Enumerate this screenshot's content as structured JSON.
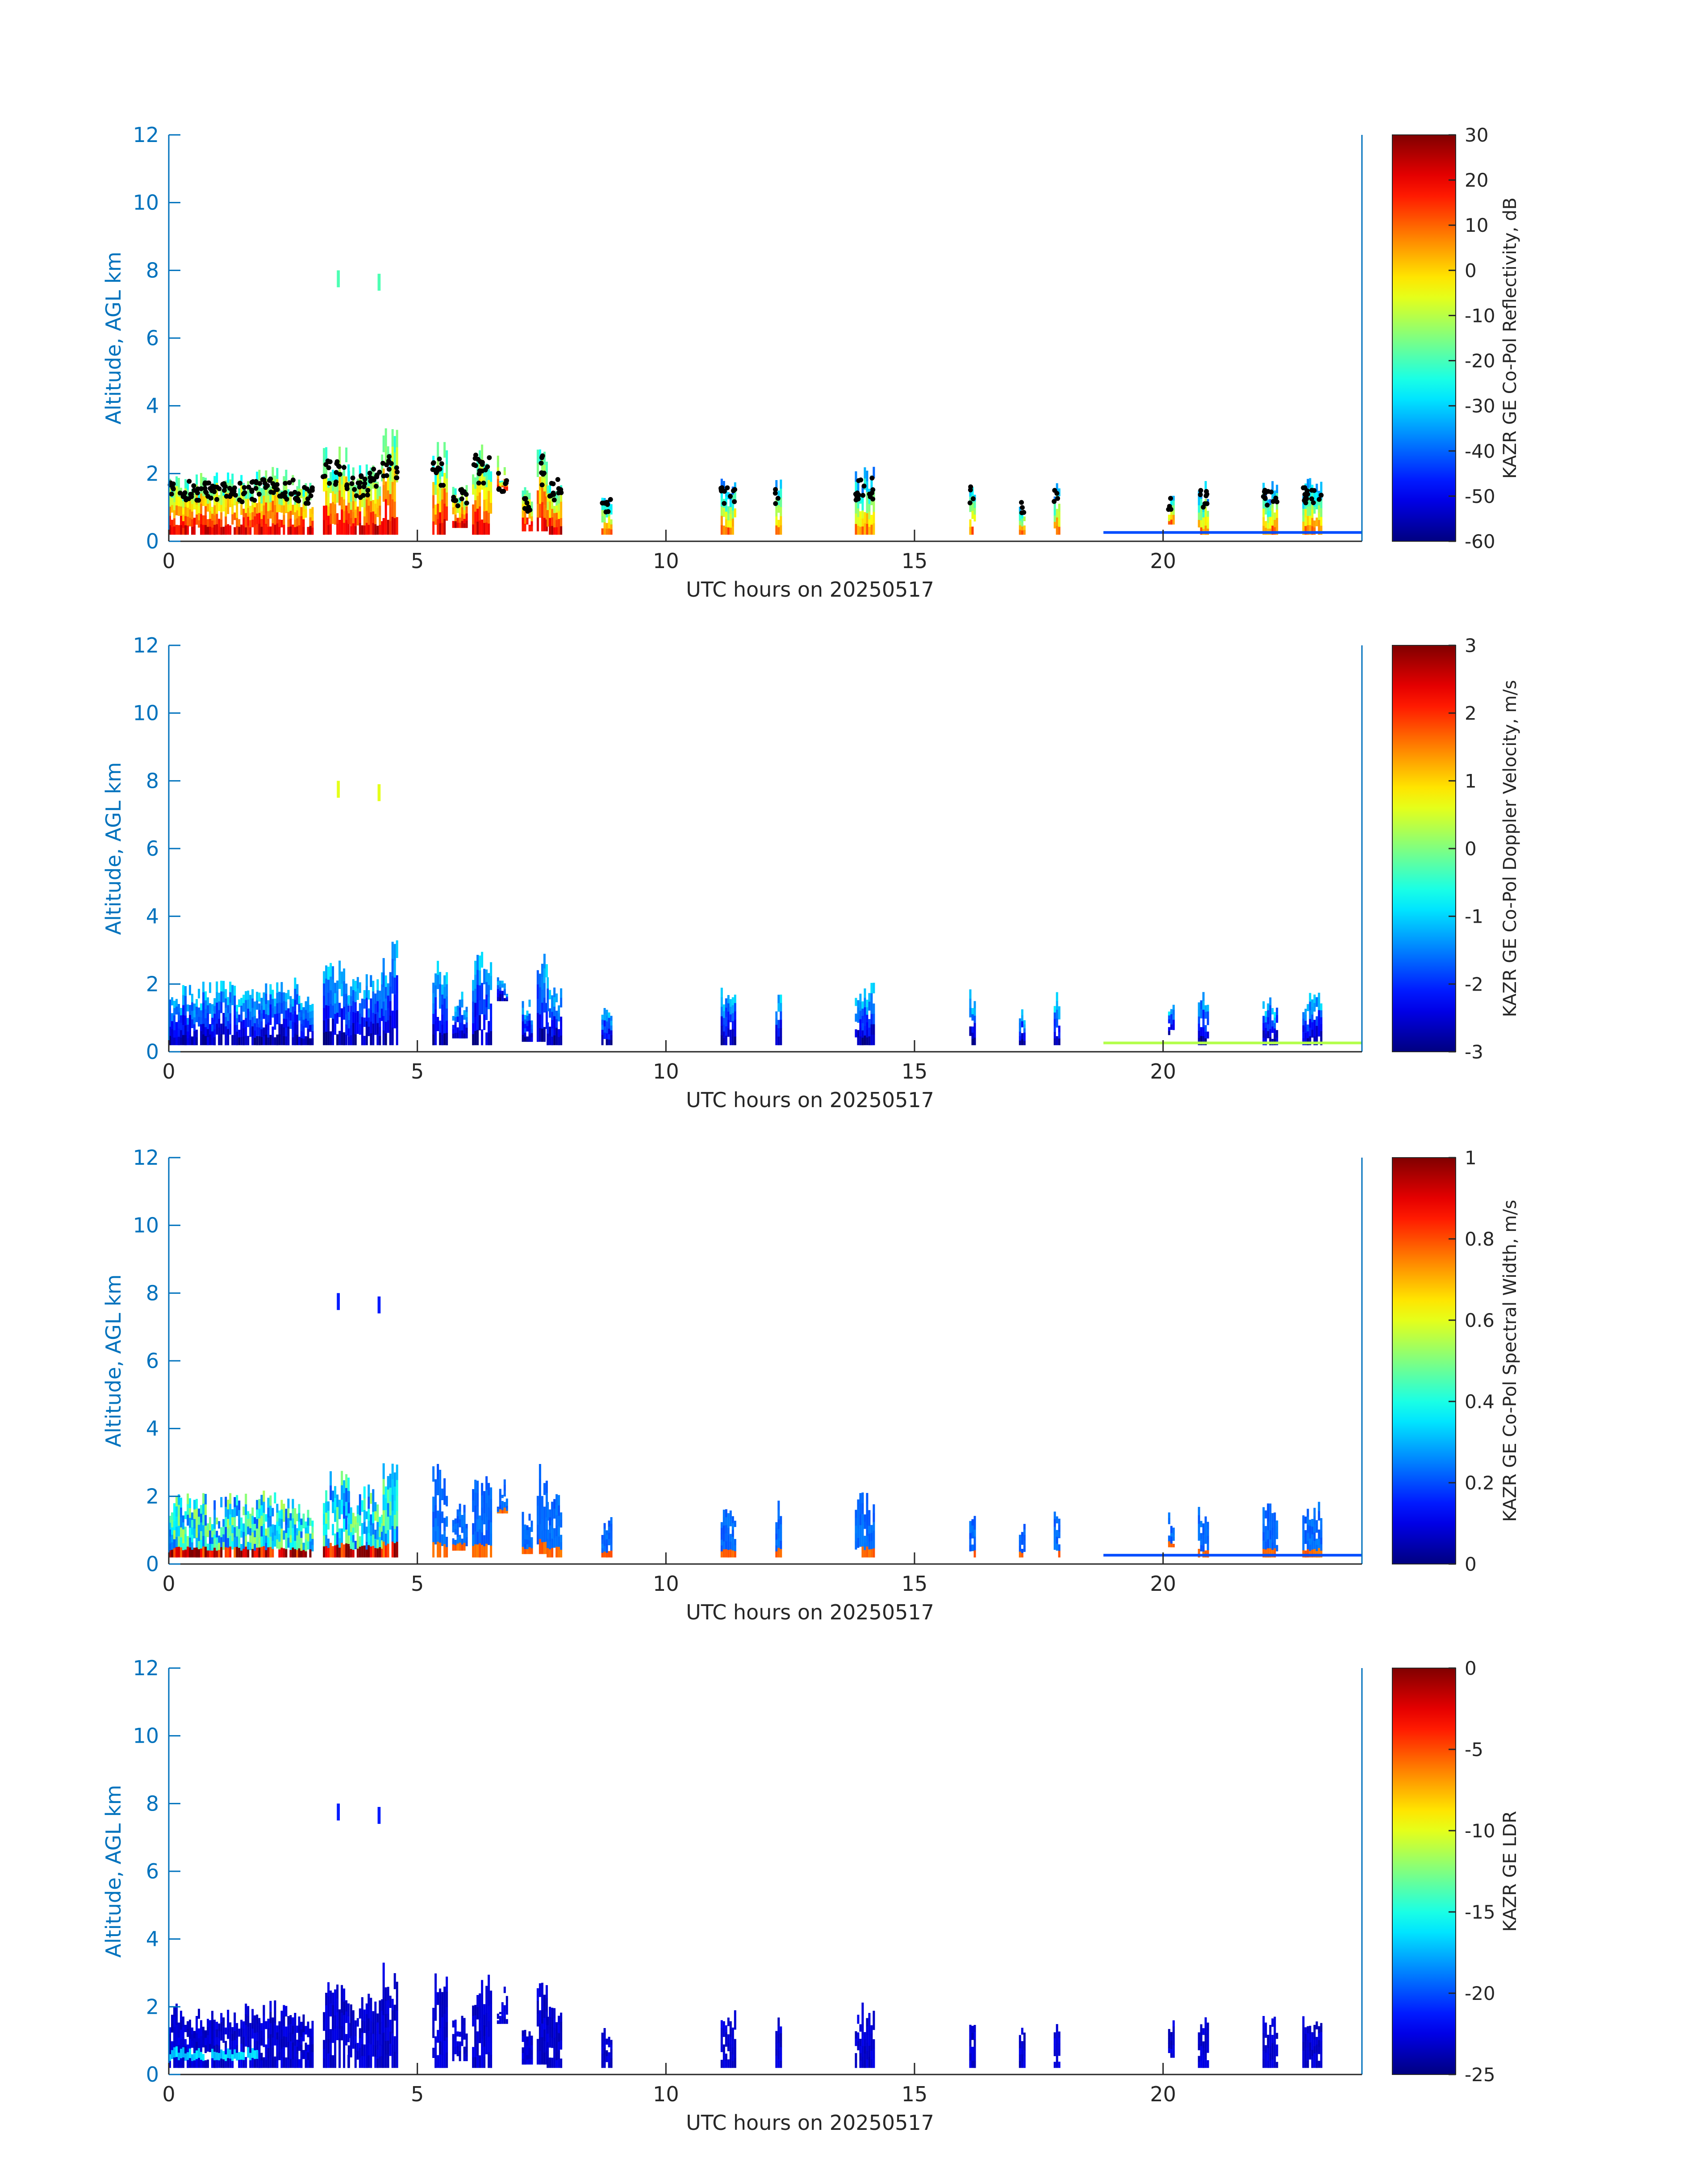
{
  "figure": {
    "panels": [
      {
        "colorbar_label": "KAZR GE Co-Pol Reflectivity, dB",
        "cbar_ticks": [
          "30",
          "20",
          "10",
          "0",
          "-10",
          "-20",
          "-30",
          "-40",
          "-50",
          "-60"
        ]
      },
      {
        "colorbar_label": "KAZR GE Co-Pol Doppler Velocity, m/s",
        "cbar_ticks": [
          "3",
          "2",
          "1",
          "0",
          "-1",
          "-2",
          "-3"
        ]
      },
      {
        "colorbar_label": "KAZR GE Co-Pol Spectral Width, m/s",
        "cbar_ticks": [
          "1",
          "0.8",
          "0.6",
          "0.4",
          "0.2",
          "0"
        ]
      },
      {
        "colorbar_label": "KAZR GE LDR",
        "cbar_ticks": [
          "0",
          "-5",
          "-10",
          "-15",
          "-20",
          "-25"
        ]
      }
    ]
  },
  "chart_data": [
    {
      "type": "heatmap",
      "title": "",
      "xlabel": "UTC hours on 20250517",
      "ylabel": "Altitude, AGL km",
      "xlim": [
        0,
        24
      ],
      "ylim": [
        0,
        12
      ],
      "xticks": [
        0,
        5,
        10,
        15,
        20
      ],
      "yticks": [
        0,
        2,
        4,
        6,
        8,
        10,
        12
      ],
      "colorbar": {
        "label": "KAZR GE Co-Pol Reflectivity, dB",
        "min": -60,
        "max": 30,
        "ticks": [
          30,
          20,
          10,
          0,
          -10,
          -20,
          -30,
          -40,
          -50,
          -60
        ],
        "colormap": "jet"
      },
      "overlay_points": {
        "marker": "black dot",
        "description": "cloud base"
      }
    },
    {
      "type": "heatmap",
      "title": "",
      "xlabel": "UTC hours on 20250517",
      "ylabel": "Altitude, AGL km",
      "xlim": [
        0,
        24
      ],
      "ylim": [
        0,
        12
      ],
      "xticks": [
        0,
        5,
        10,
        15,
        20
      ],
      "yticks": [
        0,
        2,
        4,
        6,
        8,
        10,
        12
      ],
      "colorbar": {
        "label": "KAZR GE Co-Pol Doppler Velocity, m/s",
        "min": -3,
        "max": 3,
        "ticks": [
          3,
          2,
          1,
          0,
          -1,
          -2,
          -3
        ],
        "colormap": "jet"
      }
    },
    {
      "type": "heatmap",
      "title": "",
      "xlabel": "UTC hours on 20250517",
      "ylabel": "Altitude, AGL km",
      "xlim": [
        0,
        24
      ],
      "ylim": [
        0,
        12
      ],
      "xticks": [
        0,
        5,
        10,
        15,
        20
      ],
      "yticks": [
        0,
        2,
        4,
        6,
        8,
        10,
        12
      ],
      "colorbar": {
        "label": "KAZR GE Co-Pol Spectral Width, m/s",
        "min": 0,
        "max": 1,
        "ticks": [
          1,
          0.8,
          0.6,
          0.4,
          0.2,
          0
        ],
        "colormap": "jet"
      }
    },
    {
      "type": "heatmap",
      "title": "",
      "xlabel": "UTC hours on 20250517",
      "ylabel": "Altitude, AGL km",
      "xlim": [
        0,
        24
      ],
      "ylim": [
        0,
        12
      ],
      "xticks": [
        0,
        5,
        10,
        15,
        20
      ],
      "yticks": [
        0,
        2,
        4,
        6,
        8,
        10,
        12
      ],
      "colorbar": {
        "label": "KAZR GE LDR",
        "min": -25,
        "max": 0,
        "ticks": [
          0,
          -5,
          -10,
          -15,
          -20,
          -25
        ],
        "colormap": "jet"
      }
    }
  ],
  "cloud_segments": [
    {
      "t0": 0.0,
      "t1": 0.9,
      "top": 2.1,
      "base": 0.2
    },
    {
      "t0": 0.9,
      "t1": 1.8,
      "top": 2.1,
      "base": 0.2
    },
    {
      "t0": 1.8,
      "t1": 2.6,
      "top": 2.2,
      "base": 0.2
    },
    {
      "t0": 2.6,
      "t1": 2.9,
      "top": 1.9,
      "base": 0.2
    },
    {
      "t0": 3.1,
      "t1": 3.6,
      "top": 2.8,
      "base": 0.2
    },
    {
      "t0": 3.6,
      "t1": 4.0,
      "top": 2.3,
      "base": 0.2
    },
    {
      "t0": 4.0,
      "t1": 4.3,
      "top": 2.6,
      "base": 0.2
    },
    {
      "t0": 4.3,
      "t1": 4.6,
      "top": 3.4,
      "base": 0.2
    },
    {
      "t0": 5.3,
      "t1": 5.6,
      "top": 3.0,
      "base": 0.2
    },
    {
      "t0": 5.7,
      "t1": 6.0,
      "top": 1.8,
      "base": 0.4
    },
    {
      "t0": 6.1,
      "t1": 6.5,
      "top": 3.0,
      "base": 0.2
    },
    {
      "t0": 6.6,
      "t1": 6.8,
      "top": 2.6,
      "base": 1.5
    },
    {
      "t0": 7.1,
      "t1": 7.3,
      "top": 1.6,
      "base": 0.3
    },
    {
      "t0": 7.4,
      "t1": 7.6,
      "top": 3.0,
      "base": 0.3
    },
    {
      "t0": 7.6,
      "t1": 7.9,
      "top": 2.2,
      "base": 0.2
    },
    {
      "t0": 8.7,
      "t1": 8.9,
      "top": 1.5,
      "base": 0.2
    },
    {
      "t0": 11.1,
      "t1": 11.4,
      "top": 1.9,
      "base": 0.2
    },
    {
      "t0": 12.2,
      "t1": 12.3,
      "top": 1.9,
      "base": 0.2
    },
    {
      "t0": 13.8,
      "t1": 14.2,
      "top": 2.2,
      "base": 0.2
    },
    {
      "t0": 16.1,
      "t1": 16.2,
      "top": 1.9,
      "base": 0.2
    },
    {
      "t0": 17.1,
      "t1": 17.2,
      "top": 1.4,
      "base": 0.2
    },
    {
      "t0": 17.8,
      "t1": 17.9,
      "top": 1.8,
      "base": 0.2
    },
    {
      "t0": 20.1,
      "t1": 20.2,
      "top": 1.6,
      "base": 0.5
    },
    {
      "t0": 20.7,
      "t1": 20.9,
      "top": 1.8,
      "base": 0.2
    },
    {
      "t0": 22.0,
      "t1": 22.3,
      "top": 1.8,
      "base": 0.2
    },
    {
      "t0": 22.8,
      "t1": 23.2,
      "top": 1.9,
      "base": 0.2
    }
  ],
  "cirrus_patches": [
    {
      "t0": 3.38,
      "t1": 3.44,
      "top": 8.0,
      "base": 7.5
    },
    {
      "t0": 4.2,
      "t1": 4.26,
      "top": 7.9,
      "base": 7.4
    }
  ]
}
